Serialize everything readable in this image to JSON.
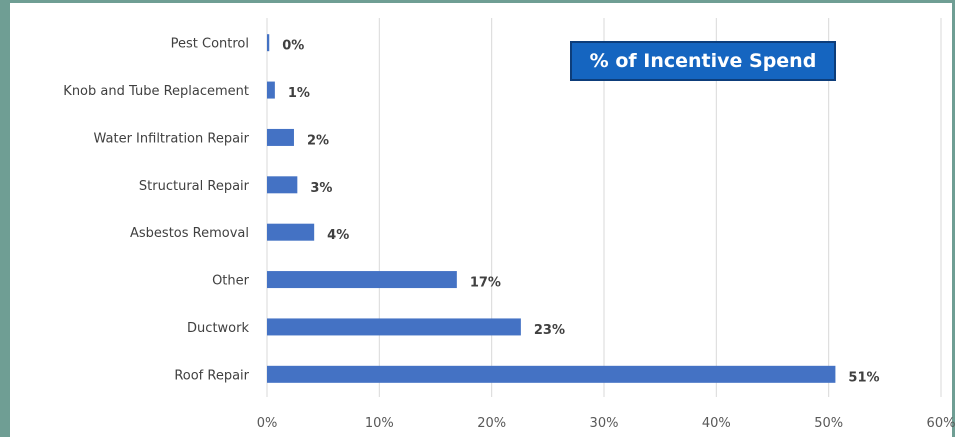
{
  "chart_data": {
    "type": "bar",
    "orientation": "horizontal",
    "title": "% of Incentive Spend",
    "categories": [
      "Pest Control",
      "Knob and Tube Replacement",
      "Water Infiltration Repair",
      "Structural Repair",
      "Asbestos Removal",
      "Other",
      "Ductwork",
      "Roof Repair"
    ],
    "values": [
      0.2,
      0.7,
      2.4,
      2.7,
      4.2,
      16.9,
      22.6,
      50.6
    ],
    "value_labels": [
      "0%",
      "1%",
      "2%",
      "3%",
      "4%",
      "17%",
      "23%",
      "51%"
    ],
    "x_ticks": [
      "0%",
      "10%",
      "20%",
      "30%",
      "40%",
      "50%",
      "60%"
    ],
    "xlim": [
      0,
      60
    ],
    "xlabel": "",
    "ylabel": "",
    "grid": "vertical",
    "legend": "none",
    "bar_color": "#4472c4",
    "title_box_color": "#1565c0",
    "frame_color": "#6f9e94"
  }
}
